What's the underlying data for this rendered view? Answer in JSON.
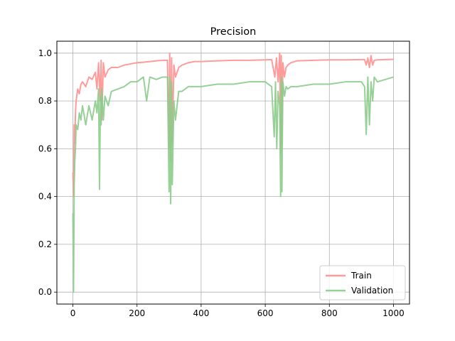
{
  "chart_data": {
    "type": "line",
    "title": "Precision",
    "xlabel": "",
    "ylabel": "",
    "xlim": [
      -50,
      1050
    ],
    "ylim": [
      -0.05,
      1.05
    ],
    "xticks": [
      0,
      200,
      400,
      600,
      800,
      1000
    ],
    "xtick_labels": [
      "0",
      "200",
      "400",
      "600",
      "800",
      "1000"
    ],
    "yticks": [
      0.0,
      0.2,
      0.4,
      0.6,
      0.8,
      1.0
    ],
    "ytick_labels": [
      "0.0",
      "0.2",
      "0.4",
      "0.6",
      "0.8",
      "1.0"
    ],
    "grid": true,
    "legend_position": "lower-right",
    "series": [
      {
        "name": "Train",
        "color": "#ff9796",
        "line_width": 2,
        "opacity": 0.95,
        "x": [
          0,
          2,
          4,
          6,
          8,
          10,
          15,
          20,
          25,
          30,
          40,
          50,
          60,
          70,
          75,
          80,
          85,
          88,
          90,
          95,
          100,
          110,
          120,
          140,
          160,
          180,
          200,
          220,
          240,
          260,
          280,
          295,
          300,
          302,
          305,
          308,
          310,
          315,
          320,
          330,
          340,
          360,
          380,
          400,
          450,
          500,
          550,
          600,
          620,
          630,
          635,
          640,
          645,
          648,
          650,
          652,
          655,
          660,
          665,
          670,
          680,
          700,
          750,
          800,
          850,
          900,
          910,
          915,
          920,
          925,
          930,
          935,
          940,
          950,
          1000
        ],
        "y": [
          0.5,
          0.4,
          0.7,
          0.62,
          0.75,
          0.8,
          0.85,
          0.83,
          0.87,
          0.88,
          0.86,
          0.9,
          0.89,
          0.92,
          0.85,
          0.96,
          0.8,
          0.97,
          0.72,
          0.96,
          0.9,
          0.93,
          0.94,
          0.94,
          0.95,
          0.955,
          0.96,
          0.962,
          0.965,
          0.968,
          0.97,
          0.97,
          0.6,
          1.0,
          0.55,
          0.98,
          0.62,
          0.95,
          0.9,
          0.94,
          0.95,
          0.96,
          0.965,
          0.965,
          0.968,
          0.97,
          0.97,
          0.972,
          0.973,
          0.9,
          0.98,
          0.88,
          1.0,
          0.58,
          0.99,
          0.62,
          0.96,
          0.9,
          0.94,
          0.95,
          0.96,
          0.968,
          0.97,
          0.972,
          0.972,
          0.973,
          0.973,
          0.95,
          0.98,
          0.94,
          0.99,
          0.95,
          0.97,
          0.972,
          0.974
        ]
      },
      {
        "name": "Validation",
        "color": "#8ccc8c",
        "line_width": 2,
        "opacity": 0.9,
        "x": [
          0,
          2,
          4,
          6,
          8,
          10,
          15,
          20,
          25,
          30,
          40,
          50,
          60,
          70,
          75,
          80,
          83,
          86,
          88,
          90,
          95,
          100,
          110,
          120,
          140,
          160,
          180,
          200,
          220,
          230,
          240,
          260,
          280,
          295,
          300,
          302,
          305,
          308,
          310,
          315,
          320,
          330,
          340,
          360,
          380,
          400,
          450,
          500,
          550,
          600,
          620,
          628,
          632,
          636,
          640,
          645,
          648,
          650,
          652,
          655,
          660,
          665,
          670,
          680,
          700,
          750,
          800,
          850,
          900,
          910,
          915,
          920,
          925,
          930,
          935,
          940,
          950,
          1000
        ],
        "y": [
          0.33,
          0.0,
          0.45,
          0.55,
          0.6,
          0.7,
          0.68,
          0.75,
          0.72,
          0.78,
          0.7,
          0.78,
          0.72,
          0.8,
          0.75,
          0.85,
          0.43,
          0.82,
          0.7,
          0.85,
          0.72,
          0.82,
          0.78,
          0.84,
          0.85,
          0.86,
          0.88,
          0.88,
          0.9,
          0.8,
          0.9,
          0.89,
          0.9,
          0.9,
          0.42,
          0.9,
          0.37,
          0.88,
          0.45,
          0.8,
          0.72,
          0.84,
          0.84,
          0.86,
          0.86,
          0.86,
          0.87,
          0.87,
          0.88,
          0.88,
          0.86,
          0.65,
          0.88,
          0.6,
          0.84,
          0.78,
          0.4,
          0.9,
          0.42,
          0.88,
          0.82,
          0.86,
          0.85,
          0.86,
          0.86,
          0.87,
          0.87,
          0.88,
          0.88,
          0.86,
          0.66,
          0.9,
          0.7,
          0.88,
          0.8,
          0.9,
          0.88,
          0.9
        ]
      }
    ]
  }
}
